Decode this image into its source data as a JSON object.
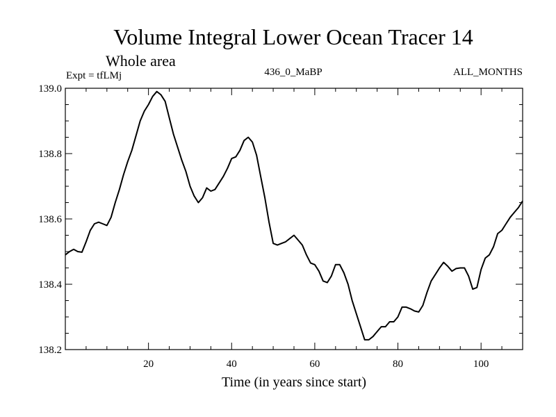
{
  "chart_data": {
    "type": "line",
    "title": "Volume Integral Lower Ocean Tracer 14",
    "subtitle": "Whole area",
    "experiment": "Expt = tfLMj",
    "period": "436_0_MaBP",
    "months": "ALL_MONTHS",
    "xlabel": "Time (in years since start)",
    "ylabel": "",
    "xlim": [
      0,
      110
    ],
    "ylim": [
      138.2,
      139.0
    ],
    "x_ticks": [
      20,
      40,
      60,
      80,
      100
    ],
    "x_tick_labels": [
      "20",
      "40",
      "60",
      "80",
      "100"
    ],
    "y_ticks": [
      138.2,
      138.4,
      138.6,
      138.8,
      139.0
    ],
    "y_tick_labels": [
      "138.2",
      "138.4",
      "138.6",
      "138.8",
      "139.0"
    ],
    "grid": false,
    "series": [
      {
        "name": "Lower Ocean Tracer 14",
        "x": [
          0,
          1,
          2,
          3,
          4,
          5,
          6,
          7,
          8,
          9,
          10,
          11,
          12,
          13,
          14,
          15,
          16,
          17,
          18,
          19,
          20,
          21,
          22,
          23,
          24,
          25,
          26,
          27,
          28,
          29,
          30,
          31,
          32,
          33,
          34,
          35,
          36,
          37,
          38,
          39,
          40,
          41,
          42,
          43,
          44,
          45,
          46,
          47,
          48,
          49,
          50,
          51,
          52,
          53,
          54,
          55,
          56,
          57,
          58,
          59,
          60,
          61,
          62,
          63,
          64,
          65,
          66,
          67,
          68,
          69,
          70,
          71,
          72,
          73,
          74,
          75,
          76,
          77,
          78,
          79,
          80,
          81,
          82,
          83,
          84,
          85,
          86,
          87,
          88,
          89,
          90,
          91,
          92,
          93,
          94,
          95,
          96,
          97,
          98,
          99,
          100,
          101,
          102,
          103,
          104,
          105,
          106,
          107,
          108,
          109,
          110
        ],
        "values": [
          138.49,
          138.5,
          138.507,
          138.5,
          138.498,
          138.53,
          138.565,
          138.585,
          138.59,
          138.585,
          138.58,
          138.605,
          138.65,
          138.69,
          138.735,
          138.775,
          138.81,
          138.855,
          138.9,
          138.93,
          138.95,
          138.975,
          138.99,
          138.98,
          138.96,
          138.91,
          138.86,
          138.82,
          138.78,
          138.745,
          138.7,
          138.67,
          138.65,
          138.665,
          138.695,
          138.685,
          138.69,
          138.71,
          138.73,
          138.755,
          138.785,
          138.79,
          138.81,
          138.84,
          138.85,
          138.835,
          138.795,
          138.73,
          138.665,
          138.59,
          138.525,
          138.52,
          138.525,
          138.53,
          138.54,
          138.55,
          138.535,
          138.52,
          138.49,
          138.465,
          138.46,
          138.44,
          138.41,
          138.405,
          138.425,
          138.46,
          138.46,
          138.435,
          138.4,
          138.35,
          138.31,
          138.27,
          138.23,
          138.23,
          138.24,
          138.255,
          138.27,
          138.27,
          138.285,
          138.285,
          138.3,
          138.33,
          138.33,
          138.325,
          138.318,
          138.315,
          138.335,
          138.375,
          138.41,
          138.43,
          138.45,
          138.467,
          138.455,
          138.44,
          138.448,
          138.45,
          138.45,
          138.425,
          138.385,
          138.39,
          138.445,
          138.48,
          138.49,
          138.515,
          138.555,
          138.565,
          138.585,
          138.605,
          138.62,
          138.635,
          138.655
        ]
      }
    ]
  }
}
